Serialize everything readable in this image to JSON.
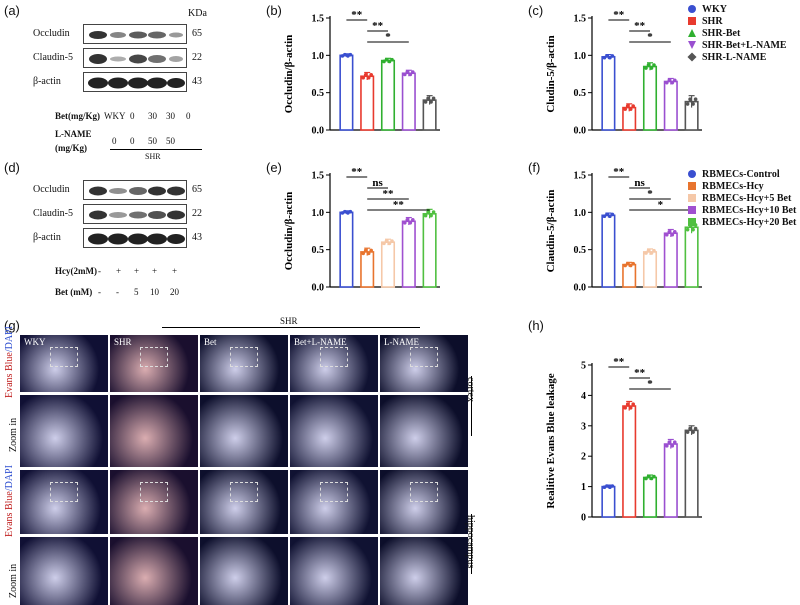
{
  "panels": {
    "a": "(a)",
    "b": "(b)",
    "c": "(c)",
    "d": "(d)",
    "e": "(e)",
    "f": "(f)",
    "g": "(g)",
    "h": "(h)"
  },
  "blot_a": {
    "kda_header": "KDa",
    "rows": [
      {
        "label": "Occludin",
        "kda": "65"
      },
      {
        "label": "Claudin-5",
        "kda": "22"
      },
      {
        "label": "β-actin",
        "kda": "43"
      }
    ],
    "bet_label": "Bet(mg/Kg)",
    "wky_label": "WKY",
    "bet_values": [
      "0",
      "30",
      "30",
      "0"
    ],
    "lname_label_1": "L-NAME",
    "lname_label_2": "(mg/Kg)",
    "lname_values": [
      "0",
      "0",
      "50",
      "50"
    ],
    "group_label": "SHR"
  },
  "blot_d": {
    "rows": [
      {
        "label": "Occludin",
        "kda": "65"
      },
      {
        "label": "Claudin-5",
        "kda": "22"
      },
      {
        "label": "β-actin",
        "kda": "43"
      }
    ],
    "hcy_label": "Hcy(2mM)",
    "hcy_values": [
      "-",
      "+",
      "+",
      "+",
      "+"
    ],
    "bet_label": "Bet  (mM)",
    "bet_values": [
      "-",
      "-",
      "5",
      "10",
      "20"
    ]
  },
  "legend_top": {
    "items": [
      {
        "name": "WKY",
        "color": "#3a4fd0",
        "shape": "circle"
      },
      {
        "name": "SHR",
        "color": "#e83a2e",
        "shape": "square"
      },
      {
        "name": "SHR-Bet",
        "color": "#30b030",
        "shape": "triangle-up"
      },
      {
        "name": "SHR-Bet+L-NAME",
        "color": "#9a4fd0",
        "shape": "triangle-down"
      },
      {
        "name": "SHR-L-NAME",
        "color": "#555555",
        "shape": "diamond"
      }
    ]
  },
  "legend_mid": {
    "items": [
      {
        "name": "RBMECs-Control",
        "color": "#3a4fd0",
        "shape": "circle"
      },
      {
        "name": "RBMECs-Hcy",
        "color": "#e8742e",
        "shape": "square"
      },
      {
        "name": "RBMECs-Hcy+5 Bet",
        "color": "#f5c8a8",
        "shape": "square"
      },
      {
        "name": "RBMECs-Hcy+10 Bet",
        "color": "#a050d0",
        "shape": "square"
      },
      {
        "name": "RBMECs-Hcy+20 Bet",
        "color": "#50c040",
        "shape": "square"
      }
    ]
  },
  "chart_data": [
    {
      "id": "b",
      "type": "bar",
      "ylabel": "Occludin/β-actin",
      "ylim": [
        0,
        1.5
      ],
      "yticks": [
        "0.0",
        "0.5",
        "1.0",
        "1.5"
      ],
      "values": [
        1.0,
        0.72,
        0.93,
        0.76,
        0.4
      ],
      "errors": [
        0.02,
        0.05,
        0.03,
        0.04,
        0.06
      ],
      "colors": [
        "#3a4fd0",
        "#e83a2e",
        "#30b030",
        "#9a4fd0",
        "#555555"
      ],
      "sig": [
        {
          "from": 0,
          "to": 1,
          "label": "**",
          "level": 0
        },
        {
          "from": 1,
          "to": 2,
          "label": "**",
          "level": 1
        },
        {
          "from": 1,
          "to": 3,
          "label": "*",
          "level": 2
        }
      ]
    },
    {
      "id": "c",
      "type": "bar",
      "ylabel": "Cludin-5/β-actin",
      "ylim": [
        0,
        1.5
      ],
      "yticks": [
        "0.0",
        "0.5",
        "1.0",
        "1.5"
      ],
      "values": [
        0.98,
        0.3,
        0.85,
        0.65,
        0.38
      ],
      "errors": [
        0.03,
        0.05,
        0.05,
        0.04,
        0.08
      ],
      "colors": [
        "#3a4fd0",
        "#e83a2e",
        "#30b030",
        "#9a4fd0",
        "#555555"
      ],
      "sig": [
        {
          "from": 0,
          "to": 1,
          "label": "**",
          "level": 0
        },
        {
          "from": 1,
          "to": 2,
          "label": "**",
          "level": 1
        },
        {
          "from": 1,
          "to": 3,
          "label": "*",
          "level": 2
        }
      ]
    },
    {
      "id": "e",
      "type": "bar",
      "ylabel": "Occludin/β-actin",
      "ylim": [
        0,
        1.5
      ],
      "yticks": [
        "0.0",
        "0.5",
        "1.0",
        "1.5"
      ],
      "values": [
        1.0,
        0.47,
        0.6,
        0.88,
        0.98
      ],
      "errors": [
        0.02,
        0.05,
        0.04,
        0.05,
        0.06
      ],
      "colors": [
        "#3a4fd0",
        "#e8742e",
        "#f5c8a8",
        "#a050d0",
        "#50c040"
      ],
      "sig": [
        {
          "from": 0,
          "to": 1,
          "label": "**",
          "level": 0
        },
        {
          "from": 1,
          "to": 2,
          "label": "ns",
          "level": 1
        },
        {
          "from": 1,
          "to": 3,
          "label": "**",
          "level": 2
        },
        {
          "from": 1,
          "to": 4,
          "label": "**",
          "level": 3
        }
      ]
    },
    {
      "id": "f",
      "type": "bar",
      "ylabel": "Claudin-5/β-actin",
      "ylim": [
        0,
        1.5
      ],
      "yticks": [
        "0.0",
        "0.5",
        "1.0",
        "1.5"
      ],
      "values": [
        0.96,
        0.3,
        0.47,
        0.72,
        0.8
      ],
      "errors": [
        0.03,
        0.03,
        0.04,
        0.05,
        0.08
      ],
      "colors": [
        "#3a4fd0",
        "#e8742e",
        "#f5c8a8",
        "#a050d0",
        "#50c040"
      ],
      "sig": [
        {
          "from": 0,
          "to": 1,
          "label": "**",
          "level": 0
        },
        {
          "from": 1,
          "to": 2,
          "label": "ns",
          "level": 1
        },
        {
          "from": 1,
          "to": 3,
          "label": "*",
          "level": 2
        },
        {
          "from": 1,
          "to": 4,
          "label": "*",
          "level": 3
        }
      ]
    },
    {
      "id": "h",
      "type": "bar",
      "ylabel": "Realitive Evans Blue leakage",
      "ylim": [
        0,
        5
      ],
      "yticks": [
        "0",
        "1",
        "2",
        "3",
        "4",
        "5"
      ],
      "values": [
        1.0,
        3.65,
        1.3,
        2.4,
        2.85
      ],
      "errors": [
        0.05,
        0.15,
        0.08,
        0.15,
        0.15
      ],
      "colors": [
        "#3a4fd0",
        "#e83a2e",
        "#30b030",
        "#9a4fd0",
        "#555555"
      ],
      "sig": [
        {
          "from": 0,
          "to": 1,
          "label": "**",
          "level": 0
        },
        {
          "from": 1,
          "to": 2,
          "label": "**",
          "level": 1
        },
        {
          "from": 1,
          "to": 3,
          "label": "*",
          "level": 2
        }
      ]
    }
  ],
  "image_grid": {
    "group_label": "SHR",
    "columns": [
      "WKY",
      "SHR",
      "Bet",
      "Bet+L-NAME",
      "L-NAME"
    ],
    "row_labels": {
      "stain_a": "Evans Blue",
      "stain_b": "/DAPI",
      "zoom": "Zoom in",
      "cortex": "cortex",
      "hippocampus": "hippocampus"
    }
  }
}
